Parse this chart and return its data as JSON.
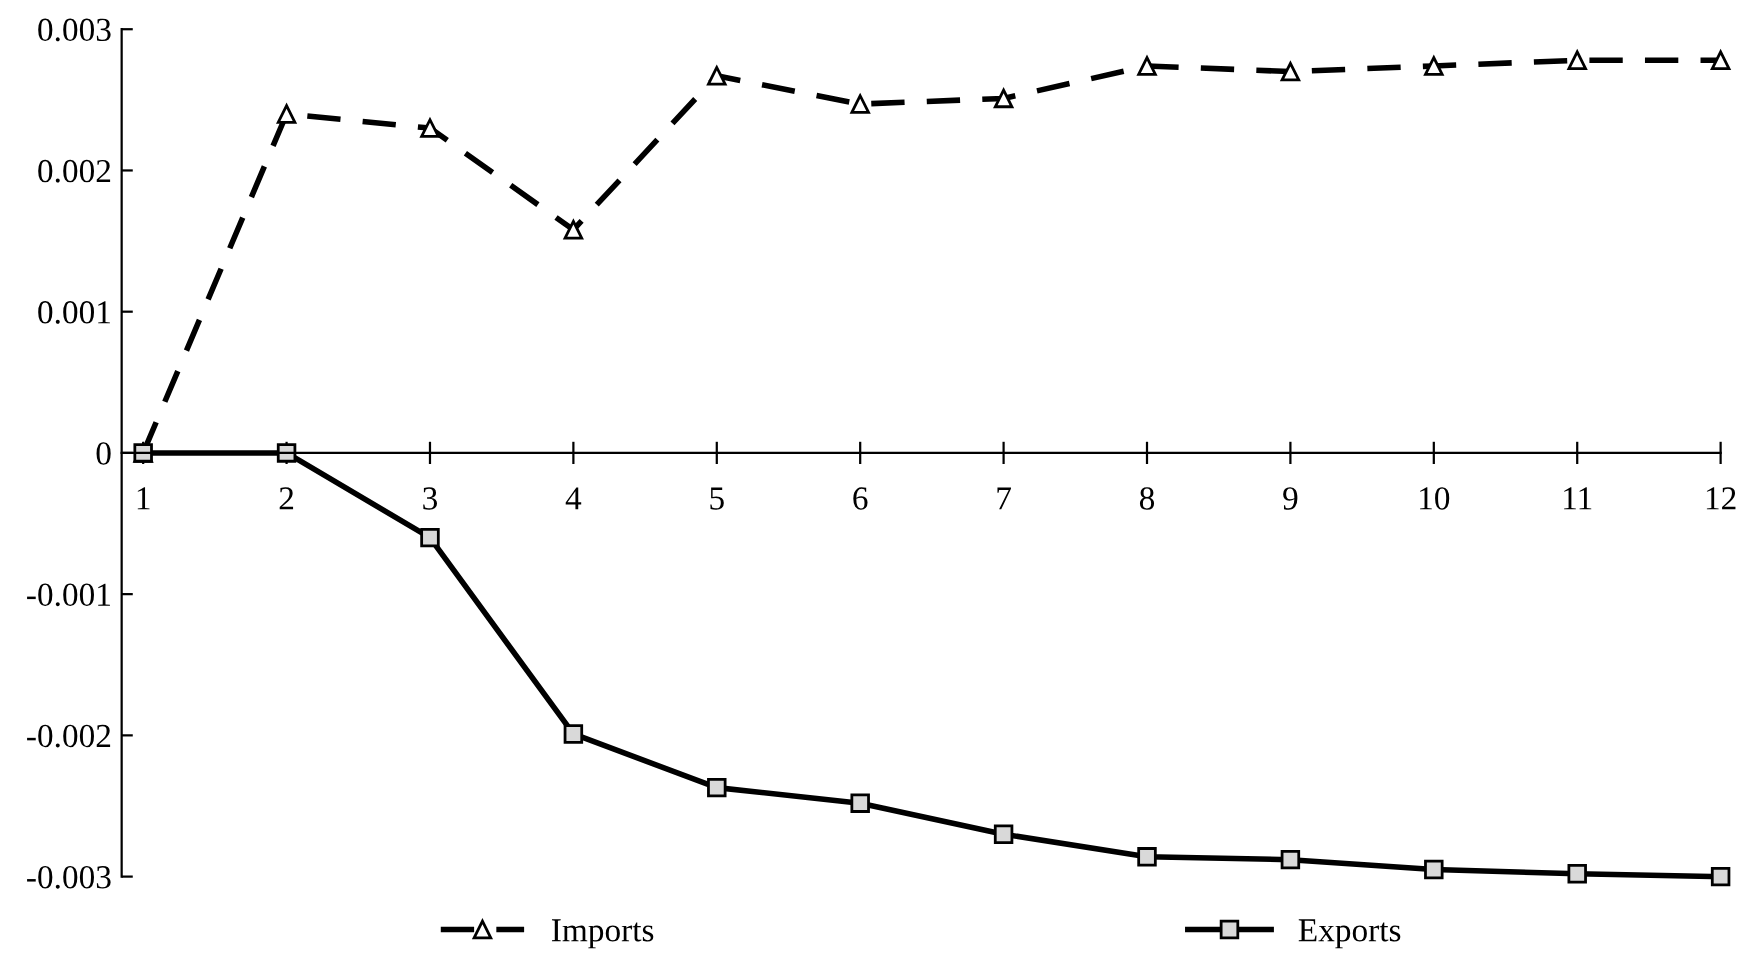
{
  "chart_data": {
    "type": "line",
    "categories": [
      "1",
      "2",
      "3",
      "4",
      "5",
      "6",
      "7",
      "8",
      "9",
      "10",
      "11",
      "12"
    ],
    "series": [
      {
        "name": "Imports",
        "color": "#000000",
        "marker": "triangle",
        "line_style": "dashed",
        "values": [
          0,
          0.0024,
          0.0023,
          0.00158,
          0.00267,
          0.00247,
          0.00251,
          0.00274,
          0.0027,
          0.00274,
          0.00278,
          0.00278
        ]
      },
      {
        "name": "Exports",
        "color": "#000000",
        "marker": "square",
        "line_style": "solid",
        "values": [
          0,
          0,
          -0.0006,
          -0.00199,
          -0.00237,
          -0.00248,
          -0.0027,
          -0.00286,
          -0.00288,
          -0.00295,
          -0.00298,
          -0.003
        ]
      }
    ],
    "ylim": [
      -0.003,
      0.003
    ],
    "yticks": [
      {
        "value": -0.003,
        "label": "-0.003"
      },
      {
        "value": -0.002,
        "label": "-0.002"
      },
      {
        "value": -0.001,
        "label": "-0.001"
      },
      0,
      0.001,
      0.002,
      0.003
    ],
    "grid": false,
    "legend": "bottom"
  }
}
